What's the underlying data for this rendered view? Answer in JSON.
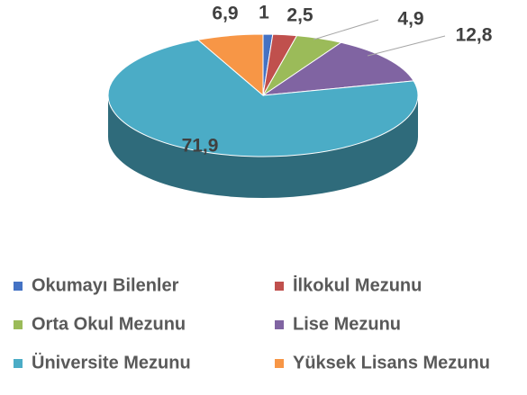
{
  "chart_data": {
    "type": "pie",
    "categories": [
      "Okumayı Bilenler",
      "İlkokul Mezunu",
      "Orta Okul Mezunu",
      "Lise Mezunu",
      "Üniversite Mezunu",
      "Yüksek Lisans Mezunu"
    ],
    "values": [
      1,
      2.5,
      4.9,
      12.8,
      71.9,
      6.9
    ],
    "value_labels": [
      "1",
      "2,5",
      "4,9",
      "12,8",
      "71,9",
      "6,9"
    ],
    "colors": [
      "#4472c4",
      "#c0504d",
      "#9bbb59",
      "#8064a2",
      "#4bacc6",
      "#f79646"
    ]
  }
}
